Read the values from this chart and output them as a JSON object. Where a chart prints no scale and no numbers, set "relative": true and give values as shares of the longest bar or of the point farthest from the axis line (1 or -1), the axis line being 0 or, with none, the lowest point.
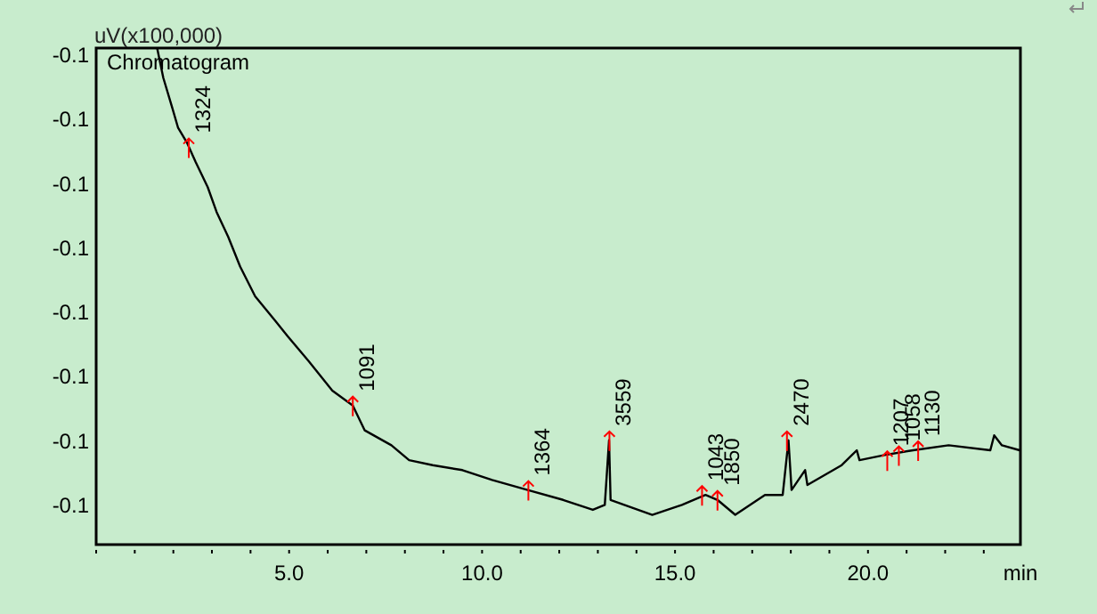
{
  "chart_data": {
    "type": "line",
    "title": "Chromatogram",
    "ylabel": "uV(x100,000)",
    "xlabel": "min",
    "relative": true,
    "color": "#000000",
    "xlim": [
      0,
      23.95
    ],
    "xticks": [
      {
        "value": 5,
        "label": "5.0"
      },
      {
        "value": 10,
        "label": "10.0"
      },
      {
        "value": 15,
        "label": "15.0"
      },
      {
        "value": 20,
        "label": "20.0"
      }
    ],
    "x": [
      1.58,
      1.74,
      1.97,
      2.12,
      2.35,
      2.58,
      2.89,
      3.12,
      3.42,
      3.73,
      4.12,
      4.65,
      4.96,
      5.5,
      6.12,
      6.65,
      6.96,
      7.65,
      8.11,
      8.72,
      9.49,
      10.26,
      11.18,
      12.1,
      12.87,
      13.18,
      13.29,
      13.33,
      14.41,
      15.18,
      15.79,
      16.1,
      16.56,
      17.33,
      17.79,
      17.94,
      18.02,
      18.37,
      18.43,
      19.32,
      19.71,
      19.78,
      20.4,
      21.17,
      22.09,
      23.17,
      23.27,
      23.47,
      23.93
    ],
    "values": [
      1.0,
      0.94,
      0.88,
      0.84,
      0.81,
      0.77,
      0.72,
      0.67,
      0.62,
      0.56,
      0.5,
      0.45,
      0.42,
      0.37,
      0.31,
      0.28,
      0.23,
      0.2,
      0.17,
      0.16,
      0.15,
      0.13,
      0.11,
      0.09,
      0.07,
      0.08,
      0.21,
      0.09,
      0.06,
      0.08,
      0.1,
      0.09,
      0.06,
      0.1,
      0.1,
      0.21,
      0.11,
      0.15,
      0.12,
      0.16,
      0.19,
      0.17,
      0.18,
      0.19,
      0.2,
      0.19,
      0.22,
      0.2,
      0.19
    ],
    "annotations": [
      "-0.1",
      "-0.1",
      "-0.1",
      "-0.1",
      "-0.1",
      "-0.1",
      "-0.1",
      "-0.1",
      {
        "text": "1324",
        "x": 2.4,
        "y": 0.8
      },
      {
        "text": "1091",
        "x": 6.65,
        "y": 0.28
      },
      {
        "text": "1364",
        "x": 11.2,
        "y": 0.11
      },
      {
        "text": "3559",
        "x": 13.3,
        "y": 0.21
      },
      {
        "text": "1043",
        "x": 15.7,
        "y": 0.1
      },
      {
        "text": "1850",
        "x": 16.1,
        "y": 0.09
      },
      {
        "text": "2470",
        "x": 17.9,
        "y": 0.21
      },
      {
        "text": "1207",
        "x": 20.5,
        "y": 0.17
      },
      {
        "text": "1058",
        "x": 20.8,
        "y": 0.18
      },
      {
        "text": "1130",
        "x": 21.3,
        "y": 0.19
      }
    ]
  }
}
